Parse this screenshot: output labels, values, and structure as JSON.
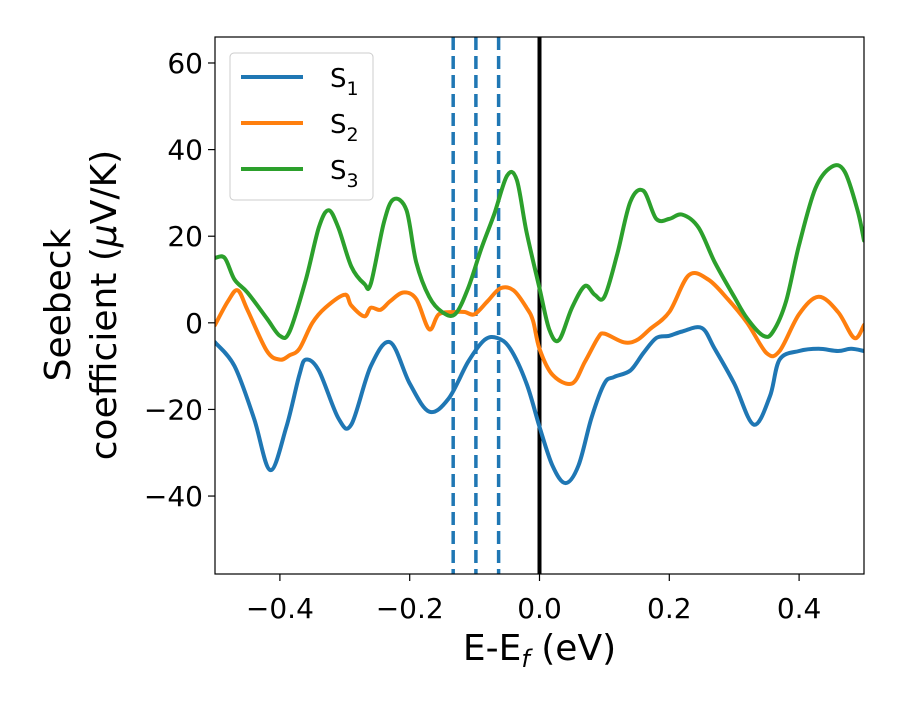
{
  "chart_data": {
    "type": "line",
    "title": "",
    "xlabel": "E-E",
    "xlabel_sub": "f",
    "xlabel_suffix": " (eV)",
    "ylabel_line1": "Seebeck",
    "ylabel_line2_prefix": "coefficient  (",
    "ylabel_mu": "μ",
    "ylabel_line2_suffix": "V/K)",
    "xlim": [
      -0.5,
      0.5
    ],
    "ylim": [
      -58,
      66
    ],
    "xticks": [
      -0.4,
      -0.2,
      0.0,
      0.2,
      0.4
    ],
    "xtick_labels": [
      "−0.4",
      "−0.2",
      "0.0",
      "0.2",
      "0.4"
    ],
    "yticks": [
      -40,
      -20,
      0,
      20,
      40,
      60
    ],
    "ytick_labels": [
      "−40",
      "−20",
      "0",
      "20",
      "40",
      "60"
    ],
    "grid": false,
    "legend_position": "top-left",
    "vertical_lines": [
      {
        "x": -0.133,
        "style": "dashed",
        "color": "#1f77b4"
      },
      {
        "x": -0.098,
        "style": "dashed",
        "color": "#1f77b4"
      },
      {
        "x": -0.063,
        "style": "dashed",
        "color": "#1f77b4"
      },
      {
        "x": 0.0,
        "style": "solid",
        "color": "#000000"
      }
    ],
    "series": [
      {
        "name": "S",
        "subscript": "1",
        "color": "#1f77b4",
        "x": [
          -0.5,
          -0.47,
          -0.44,
          -0.415,
          -0.39,
          -0.37,
          -0.36,
          -0.34,
          -0.31,
          -0.29,
          -0.26,
          -0.23,
          -0.2,
          -0.17,
          -0.14,
          -0.11,
          -0.085,
          -0.065,
          -0.045,
          -0.02,
          0.0,
          0.02,
          0.04,
          0.06,
          0.08,
          0.1,
          0.115,
          0.14,
          0.16,
          0.18,
          0.2,
          0.22,
          0.25,
          0.27,
          0.3,
          0.33,
          0.355,
          0.37,
          0.4,
          0.43,
          0.46,
          0.48,
          0.5
        ],
        "y": [
          -4.5,
          -10,
          -22,
          -34,
          -24,
          -12,
          -8.5,
          -11,
          -22,
          -23.5,
          -10,
          -4.5,
          -14,
          -20.5,
          -17.5,
          -9,
          -4,
          -3.5,
          -6,
          -14,
          -24,
          -33,
          -37,
          -33,
          -22,
          -14,
          -12.5,
          -11,
          -7,
          -3.5,
          -3,
          -2,
          -1.2,
          -6,
          -14,
          -23.5,
          -17,
          -8.5,
          -6.5,
          -6,
          -6.5,
          -6,
          -6.5
        ]
      },
      {
        "name": "S",
        "subscript": "2",
        "color": "#ff7f0e",
        "x": [
          -0.5,
          -0.48,
          -0.465,
          -0.45,
          -0.42,
          -0.4,
          -0.385,
          -0.37,
          -0.35,
          -0.33,
          -0.3,
          -0.29,
          -0.27,
          -0.26,
          -0.245,
          -0.23,
          -0.21,
          -0.19,
          -0.17,
          -0.155,
          -0.13,
          -0.115,
          -0.1,
          -0.08,
          -0.06,
          -0.04,
          -0.02,
          -0.01,
          0.0,
          0.02,
          0.05,
          0.07,
          0.09,
          0.1,
          0.13,
          0.15,
          0.17,
          0.2,
          0.23,
          0.26,
          0.29,
          0.32,
          0.35,
          0.37,
          0.4,
          0.43,
          0.46,
          0.485,
          0.5
        ],
        "y": [
          -0.5,
          5,
          7.5,
          3,
          -6.5,
          -8.5,
          -7.5,
          -6,
          0,
          3.5,
          6.5,
          4,
          1.5,
          3.5,
          3,
          5,
          7,
          5.5,
          -1.5,
          2,
          2.5,
          2.5,
          2,
          5,
          8,
          7.5,
          3.5,
          0.5,
          -6,
          -12,
          -14,
          -9,
          -3.5,
          -2.5,
          -4.5,
          -4,
          -1.5,
          2.5,
          11,
          10,
          5.5,
          0,
          -7,
          -6.5,
          2,
          6,
          2.5,
          -3.5,
          -0.5
        ]
      },
      {
        "name": "S",
        "subscript": "3",
        "color": "#2ca02c",
        "x": [
          -0.5,
          -0.485,
          -0.47,
          -0.45,
          -0.42,
          -0.4,
          -0.385,
          -0.36,
          -0.34,
          -0.325,
          -0.31,
          -0.29,
          -0.27,
          -0.26,
          -0.24,
          -0.225,
          -0.205,
          -0.19,
          -0.17,
          -0.15,
          -0.13,
          -0.11,
          -0.09,
          -0.07,
          -0.05,
          -0.035,
          -0.02,
          0.0,
          0.015,
          0.03,
          0.05,
          0.07,
          0.085,
          0.1,
          0.12,
          0.14,
          0.16,
          0.18,
          0.2,
          0.22,
          0.245,
          0.27,
          0.3,
          0.32,
          0.345,
          0.36,
          0.38,
          0.4,
          0.425,
          0.45,
          0.47,
          0.49,
          0.5
        ],
        "y": [
          15,
          15,
          10,
          7,
          1,
          -3,
          -2,
          10,
          22,
          26,
          22,
          13,
          9,
          9,
          23,
          28.5,
          26,
          14,
          6,
          2.5,
          2,
          8,
          17,
          25,
          34,
          33,
          21,
          8,
          -1.5,
          -4,
          3.5,
          8.5,
          6.5,
          6,
          16,
          28,
          30.5,
          24,
          24,
          25,
          22,
          14,
          6,
          1,
          -3,
          -2,
          5,
          18,
          31,
          36,
          35,
          26,
          19
        ]
      }
    ]
  }
}
